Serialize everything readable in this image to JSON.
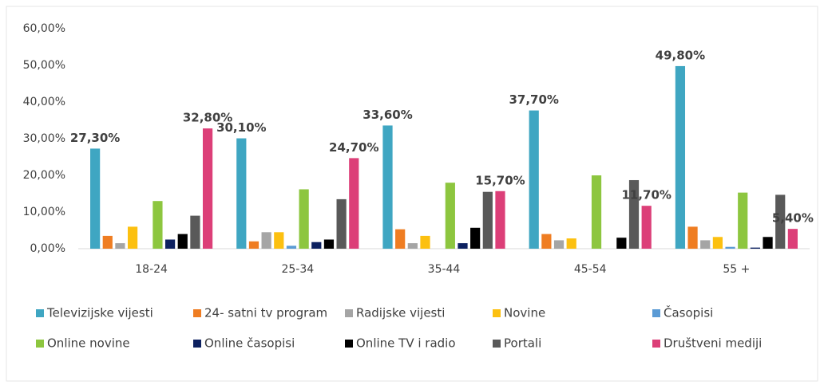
{
  "chart_data": {
    "type": "bar",
    "categories": [
      "18-24",
      "25-34",
      "35-44",
      "45-54",
      "55 +"
    ],
    "ylim": [
      0,
      60
    ],
    "yticks": [
      {
        "value": 0,
        "label": "0,00%"
      },
      {
        "value": 10,
        "label": "10,00%"
      },
      {
        "value": 20,
        "label": "20,00%"
      },
      {
        "value": 30,
        "label": "30,00%"
      },
      {
        "value": 40,
        "label": "40,00%"
      },
      {
        "value": 50,
        "label": "50,00%"
      },
      {
        "value": 60,
        "label": "60,00%"
      }
    ],
    "grid": false,
    "series": [
      {
        "name": "Televizijske vijesti",
        "color": "#3fa6c2",
        "values": [
          27.3,
          30.1,
          33.6,
          37.7,
          49.8
        ],
        "value_labels": [
          "27,30%",
          "30,10%",
          "33,60%",
          "37,70%",
          "49,80%"
        ]
      },
      {
        "name": "24- satni tv program",
        "color": "#ef7d22",
        "values": [
          3.5,
          2.0,
          5.3,
          4.0,
          6.0
        ]
      },
      {
        "name": "Radijske vijesti",
        "color": "#a5a5a5",
        "values": [
          1.5,
          4.5,
          1.5,
          2.3,
          2.3
        ]
      },
      {
        "name": "Novine",
        "color": "#fcc010",
        "values": [
          6.0,
          4.5,
          3.5,
          2.8,
          3.2
        ]
      },
      {
        "name": "Časopisi",
        "color": "#5b9bd5",
        "values": [
          0,
          0.8,
          0,
          0,
          0.5
        ]
      },
      {
        "name": "Online novine",
        "color": "#8dc63f",
        "values": [
          13.0,
          16.2,
          18.0,
          20.0,
          15.3
        ]
      },
      {
        "name": "Online časopisi",
        "color": "#0d2160",
        "values": [
          2.5,
          1.8,
          1.5,
          0,
          0.3
        ]
      },
      {
        "name": "Online TV i radio",
        "color": "#000000",
        "values": [
          4.0,
          2.5,
          5.7,
          3.0,
          3.2
        ]
      },
      {
        "name": "Portali",
        "color": "#595959",
        "values": [
          9.0,
          13.5,
          15.5,
          18.7,
          14.7
        ]
      },
      {
        "name": "Društveni mediji",
        "color": "#dc3f78",
        "values": [
          32.8,
          24.7,
          15.7,
          11.7,
          5.4
        ],
        "value_labels": [
          "32,80%",
          "24,70%",
          "15,70%",
          "11,70%",
          "5,40%"
        ]
      }
    ]
  }
}
